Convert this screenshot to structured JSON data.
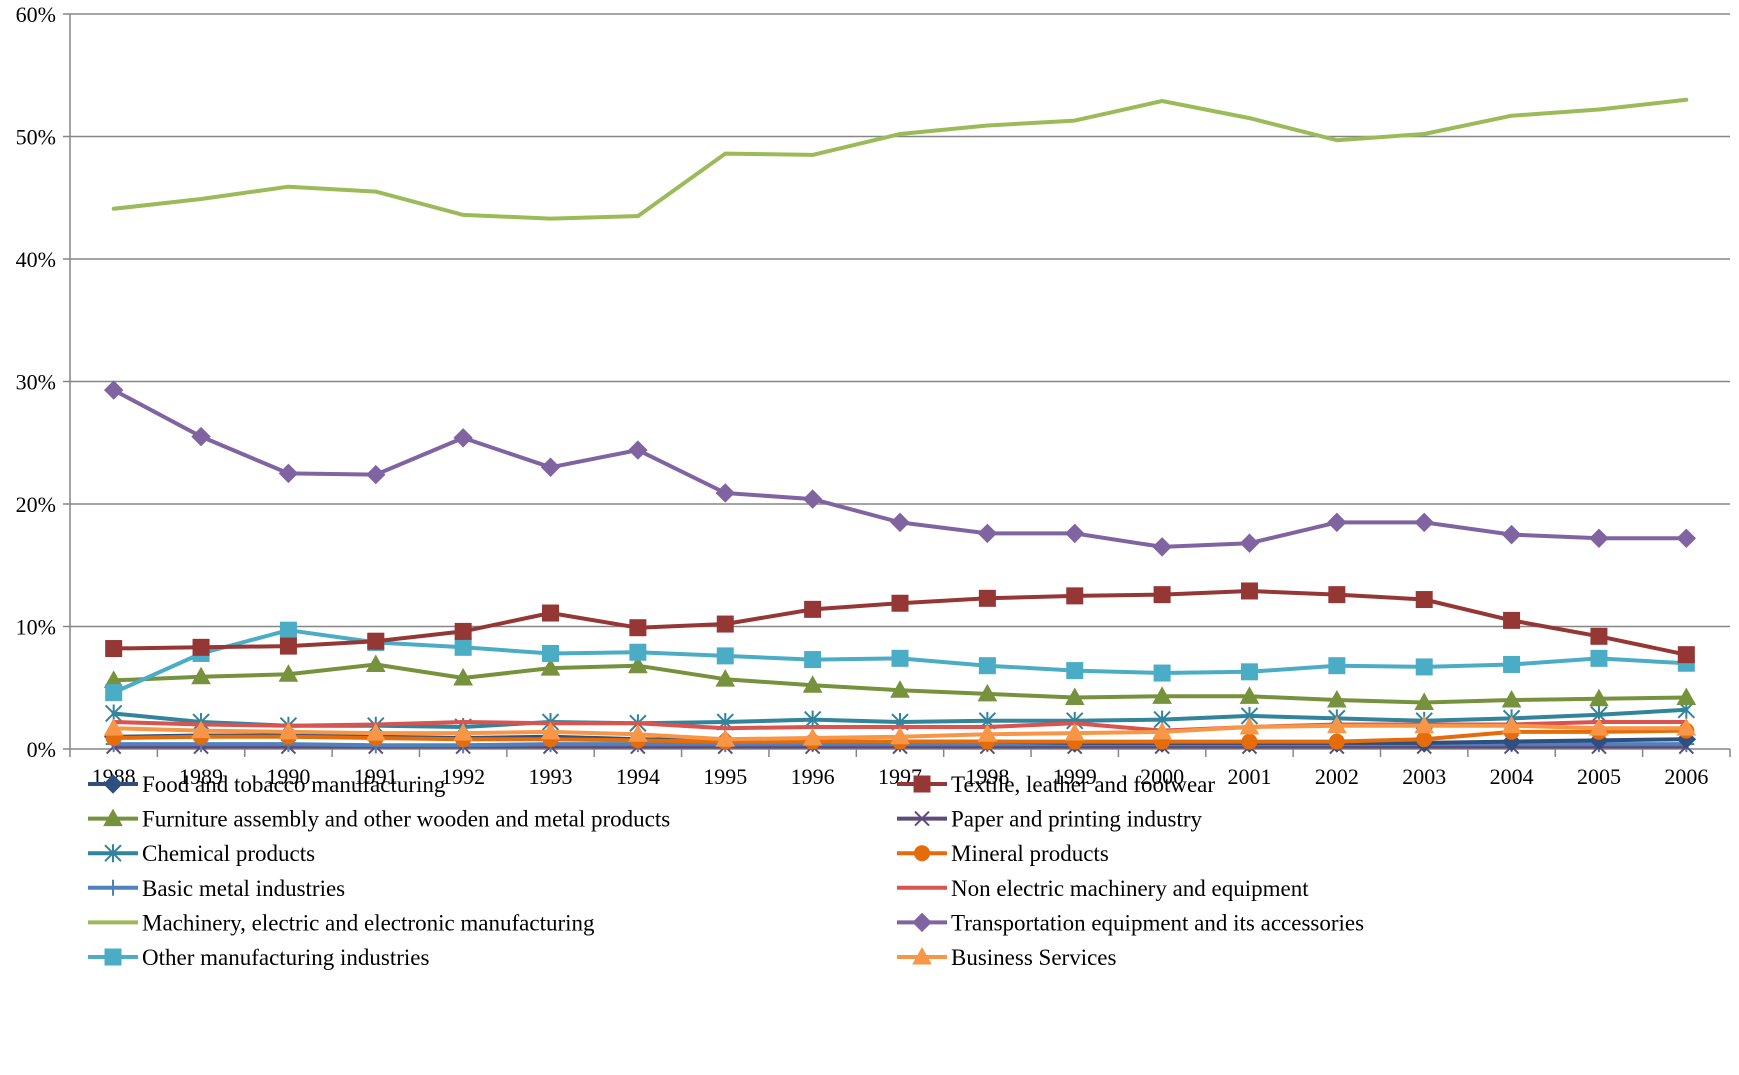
{
  "chart_data": {
    "type": "line",
    "title": "",
    "xlabel": "",
    "ylabel": "",
    "ylim": [
      0,
      60
    ],
    "y_ticks": [
      "0%",
      "10%",
      "20%",
      "30%",
      "40%",
      "50%",
      "60%"
    ],
    "grid": "horizontal",
    "legend_position": "bottom",
    "categories": [
      "1988",
      "1989",
      "1990",
      "1991",
      "1992",
      "1993",
      "1994",
      "1995",
      "1996",
      "1997",
      "1998",
      "1999",
      "2000",
      "2001",
      "2002",
      "2003",
      "2004",
      "2005",
      "2006"
    ],
    "series": [
      {
        "name": "Food and tobacco manufacturing",
        "color": "#2E4F7F",
        "marker": "diamond",
        "values": [
          1.0,
          1.1,
          1.1,
          1.0,
          0.9,
          1.0,
          0.8,
          0.7,
          0.6,
          0.6,
          0.6,
          0.5,
          0.5,
          0.5,
          0.5,
          0.5,
          0.6,
          0.7,
          0.8
        ]
      },
      {
        "name": "Textile, leather and footwear",
        "color": "#953735",
        "marker": "square",
        "values": [
          8.2,
          8.3,
          8.4,
          8.8,
          9.6,
          11.1,
          9.9,
          10.2,
          11.4,
          11.9,
          12.3,
          12.5,
          12.6,
          12.9,
          12.6,
          12.2,
          10.5,
          9.2,
          7.7
        ]
      },
      {
        "name": "Furniture assembly and other wooden and metal products",
        "color": "#76923C",
        "marker": "triangle",
        "values": [
          5.6,
          5.9,
          6.1,
          6.9,
          5.8,
          6.6,
          6.8,
          5.7,
          5.2,
          4.8,
          4.5,
          4.2,
          4.3,
          4.3,
          4.0,
          3.8,
          4.0,
          4.1,
          4.2
        ]
      },
      {
        "name": "Paper and printing industry",
        "color": "#5F4A7B",
        "marker": "x",
        "values": [
          0.2,
          0.2,
          0.2,
          0.2,
          0.2,
          0.2,
          0.2,
          0.2,
          0.2,
          0.2,
          0.2,
          0.2,
          0.2,
          0.2,
          0.2,
          0.2,
          0.2,
          0.2,
          0.2
        ]
      },
      {
        "name": "Chemical products",
        "color": "#31849B",
        "marker": "star",
        "values": [
          2.9,
          2.2,
          1.9,
          1.9,
          1.8,
          2.2,
          2.1,
          2.2,
          2.4,
          2.2,
          2.3,
          2.3,
          2.4,
          2.7,
          2.5,
          2.3,
          2.5,
          2.8,
          3.2
        ]
      },
      {
        "name": "Mineral products",
        "color": "#E46C0A",
        "marker": "circle",
        "values": [
          0.9,
          1.0,
          1.0,
          0.9,
          0.8,
          0.8,
          0.7,
          0.6,
          0.6,
          0.6,
          0.6,
          0.6,
          0.6,
          0.6,
          0.6,
          0.8,
          1.4,
          1.4,
          1.5
        ]
      },
      {
        "name": "Basic metal industries",
        "color": "#4F81BD",
        "marker": "plus",
        "values": [
          0.4,
          0.4,
          0.4,
          0.3,
          0.3,
          0.4,
          0.4,
          0.4,
          0.4,
          0.4,
          0.4,
          0.4,
          0.4,
          0.4,
          0.4,
          0.4,
          0.4,
          0.4,
          0.4
        ]
      },
      {
        "name": "Non electric machinery and equipment",
        "color": "#D9534F",
        "marker": "none",
        "values": [
          2.2,
          2.0,
          1.9,
          2.0,
          2.2,
          2.1,
          2.1,
          1.7,
          1.8,
          1.8,
          1.8,
          2.1,
          1.5,
          1.8,
          2.0,
          2.0,
          2.0,
          2.2,
          2.2
        ]
      },
      {
        "name": "Machinery, electric and electronic manufacturing",
        "color": "#9BBB59",
        "marker": "none",
        "values": [
          44.1,
          44.9,
          45.9,
          45.5,
          43.6,
          43.3,
          43.5,
          48.6,
          48.5,
          50.2,
          50.9,
          51.3,
          52.9,
          51.5,
          49.7,
          50.2,
          51.7,
          52.2,
          53.0
        ]
      },
      {
        "name": "Transportation equipment and its accessories",
        "color": "#8064A2",
        "marker": "diamond",
        "values": [
          29.3,
          25.5,
          22.5,
          22.4,
          25.4,
          23.0,
          24.4,
          20.9,
          20.4,
          18.5,
          17.6,
          17.6,
          16.5,
          16.8,
          18.5,
          18.5,
          17.5,
          17.2,
          17.2
        ]
      },
      {
        "name": "Other manufacturing industries",
        "color": "#4BACC6",
        "marker": "square",
        "values": [
          4.6,
          7.8,
          9.7,
          8.7,
          8.3,
          7.8,
          7.9,
          7.6,
          7.3,
          7.4,
          6.8,
          6.4,
          6.2,
          6.3,
          6.8,
          6.7,
          6.9,
          7.4,
          7.0
        ]
      },
      {
        "name": "Business Services",
        "color": "#F79646",
        "marker": "triangle",
        "values": [
          1.7,
          1.5,
          1.4,
          1.3,
          1.3,
          1.4,
          1.2,
          0.8,
          0.9,
          1.0,
          1.2,
          1.3,
          1.4,
          1.8,
          1.9,
          1.9,
          1.9,
          1.7,
          1.7
        ]
      }
    ]
  }
}
